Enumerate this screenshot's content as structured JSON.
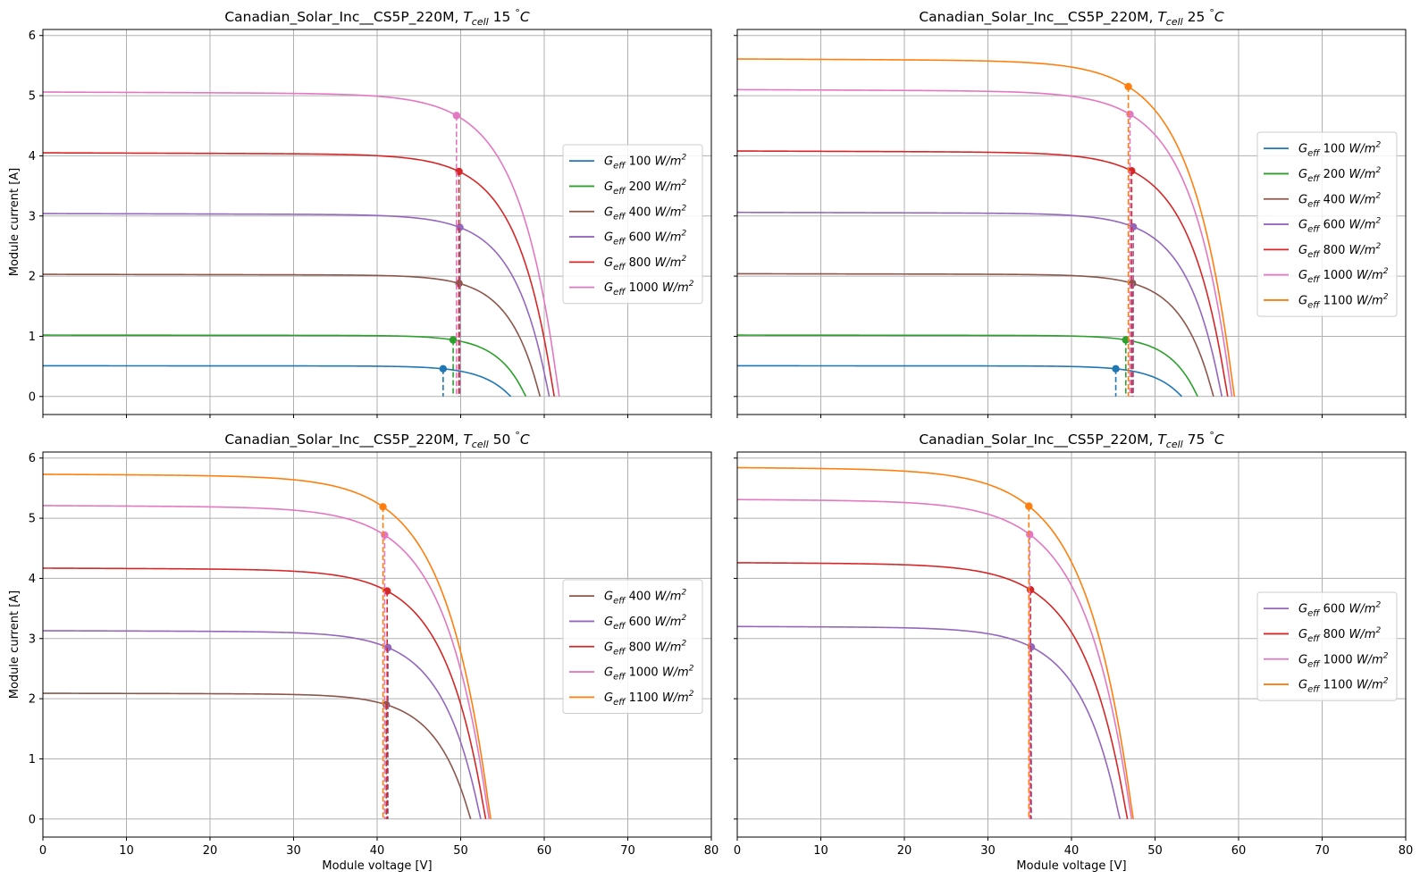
{
  "figure": {
    "panels": [
      {
        "title_main": "Canadian_Solar_Inc__CS5P_220M, ",
        "t_sym": "T",
        "t_sub": "cell",
        "t_value": " 15 ",
        "t_deg": "°",
        "t_unit": "C"
      },
      {
        "title_main": "Canadian_Solar_Inc__CS5P_220M, ",
        "t_sym": "T",
        "t_sub": "cell",
        "t_value": " 25 ",
        "t_deg": "°",
        "t_unit": "C"
      },
      {
        "title_main": "Canadian_Solar_Inc__CS5P_220M, ",
        "t_sym": "T",
        "t_sub": "cell",
        "t_value": " 50 ",
        "t_deg": "°",
        "t_unit": "C"
      },
      {
        "title_main": "Canadian_Solar_Inc__CS5P_220M, ",
        "t_sym": "T",
        "t_sub": "cell",
        "t_value": " 75 ",
        "t_deg": "°",
        "t_unit": "C"
      }
    ],
    "xlabel": "Module voltage [V]",
    "ylabel": "Module current [A]",
    "legend_prefix": "G",
    "legend_sub": "eff",
    "legend_unit_main": "W/m",
    "legend_unit_sup": "2"
  },
  "colors": {
    "100": "#1f77b4",
    "200": "#2ca02c",
    "400": "#8c564b",
    "600": "#9467bd",
    "800": "#d62728",
    "1000": "#e377c2",
    "1100": "#ff7f0e",
    "grid": "#b0b0b0",
    "axes": "#000000"
  },
  "chart_data": [
    {
      "type": "line",
      "title": "Canadian_Solar_Inc__CS5P_220M, T_cell 15 °C",
      "xlabel": "",
      "ylabel": "Module current [A]",
      "xlim": [
        0,
        80
      ],
      "ylim": [
        -0.3,
        6.1
      ],
      "xticks": [
        0,
        10,
        20,
        30,
        40,
        50,
        60,
        70,
        80
      ],
      "yticks": [
        0,
        1,
        2,
        3,
        4,
        5,
        6
      ],
      "show_xticklabels": false,
      "show_yticklabels": true,
      "grid": true,
      "legend_position": "center-right",
      "series": [
        {
          "name": "100",
          "isc": 0.51,
          "voc": 56.0,
          "vmp": 47.9,
          "imp": 0.46
        },
        {
          "name": "200",
          "isc": 1.02,
          "voc": 57.8,
          "vmp": 49.1,
          "imp": 0.94
        },
        {
          "name": "400",
          "isc": 2.03,
          "voc": 59.5,
          "vmp": 49.8,
          "imp": 1.88
        },
        {
          "name": "600",
          "isc": 3.04,
          "voc": 60.6,
          "vmp": 49.9,
          "imp": 2.81
        },
        {
          "name": "800",
          "isc": 4.05,
          "voc": 61.2,
          "vmp": 49.8,
          "imp": 3.74
        },
        {
          "name": "1000",
          "isc": 5.06,
          "voc": 61.8,
          "vmp": 49.5,
          "imp": 4.67
        }
      ]
    },
    {
      "type": "line",
      "title": "Canadian_Solar_Inc__CS5P_220M, T_cell 25 °C",
      "xlabel": "",
      "ylabel": "",
      "xlim": [
        0,
        80
      ],
      "ylim": [
        -0.3,
        6.1
      ],
      "xticks": [
        0,
        10,
        20,
        30,
        40,
        50,
        60,
        70,
        80
      ],
      "yticks": [
        0,
        1,
        2,
        3,
        4,
        5,
        6
      ],
      "show_xticklabels": false,
      "show_yticklabels": false,
      "grid": true,
      "legend_position": "center-right",
      "series": [
        {
          "name": "100",
          "isc": 0.51,
          "voc": 53.2,
          "vmp": 45.3,
          "imp": 0.46
        },
        {
          "name": "200",
          "isc": 1.02,
          "voc": 55.1,
          "vmp": 46.5,
          "imp": 0.94
        },
        {
          "name": "400",
          "isc": 2.04,
          "voc": 57.0,
          "vmp": 47.3,
          "imp": 1.88
        },
        {
          "name": "600",
          "isc": 3.06,
          "voc": 58.0,
          "vmp": 47.4,
          "imp": 2.82
        },
        {
          "name": "800",
          "isc": 4.08,
          "voc": 58.7,
          "vmp": 47.2,
          "imp": 3.75
        },
        {
          "name": "1000",
          "isc": 5.1,
          "voc": 59.2,
          "vmp": 47.0,
          "imp": 4.69
        },
        {
          "name": "1100",
          "isc": 5.61,
          "voc": 59.5,
          "vmp": 46.8,
          "imp": 5.15
        }
      ]
    },
    {
      "type": "line",
      "title": "Canadian_Solar_Inc__CS5P_220M, T_cell 50 °C",
      "xlabel": "Module voltage [V]",
      "ylabel": "Module current [A]",
      "xlim": [
        0,
        80
      ],
      "ylim": [
        -0.3,
        6.1
      ],
      "xticks": [
        0,
        10,
        20,
        30,
        40,
        50,
        60,
        70,
        80
      ],
      "yticks": [
        0,
        1,
        2,
        3,
        4,
        5,
        6
      ],
      "show_xticklabels": true,
      "show_yticklabels": true,
      "grid": true,
      "legend_position": "center-right",
      "series": [
        {
          "name": "400",
          "isc": 2.09,
          "voc": 51.2,
          "vmp": 41.1,
          "imp": 1.9
        },
        {
          "name": "600",
          "isc": 3.13,
          "voc": 52.4,
          "vmp": 41.3,
          "imp": 2.85
        },
        {
          "name": "800",
          "isc": 4.17,
          "voc": 53.0,
          "vmp": 41.2,
          "imp": 3.79
        },
        {
          "name": "1000",
          "isc": 5.21,
          "voc": 53.4,
          "vmp": 40.9,
          "imp": 4.72
        },
        {
          "name": "1100",
          "isc": 5.73,
          "voc": 53.6,
          "vmp": 40.7,
          "imp": 5.19
        }
      ]
    },
    {
      "type": "line",
      "title": "Canadian_Solar_Inc__CS5P_220M, T_cell 75 °C",
      "xlabel": "Module voltage [V]",
      "ylabel": "",
      "xlim": [
        0,
        80
      ],
      "ylim": [
        -0.3,
        6.1
      ],
      "xticks": [
        0,
        10,
        20,
        30,
        40,
        50,
        60,
        70,
        80
      ],
      "yticks": [
        0,
        1,
        2,
        3,
        4,
        5,
        6
      ],
      "show_xticklabels": true,
      "show_yticklabels": false,
      "grid": true,
      "legend_position": "center-right",
      "series": [
        {
          "name": "600",
          "isc": 3.2,
          "voc": 45.8,
          "vmp": 35.2,
          "imp": 2.86
        },
        {
          "name": "800",
          "isc": 4.26,
          "voc": 46.7,
          "vmp": 35.1,
          "imp": 3.81
        },
        {
          "name": "1000",
          "isc": 5.31,
          "voc": 47.2,
          "vmp": 35.0,
          "imp": 4.73
        },
        {
          "name": "1100",
          "isc": 5.84,
          "voc": 47.4,
          "vmp": 34.9,
          "imp": 5.2
        }
      ]
    }
  ]
}
